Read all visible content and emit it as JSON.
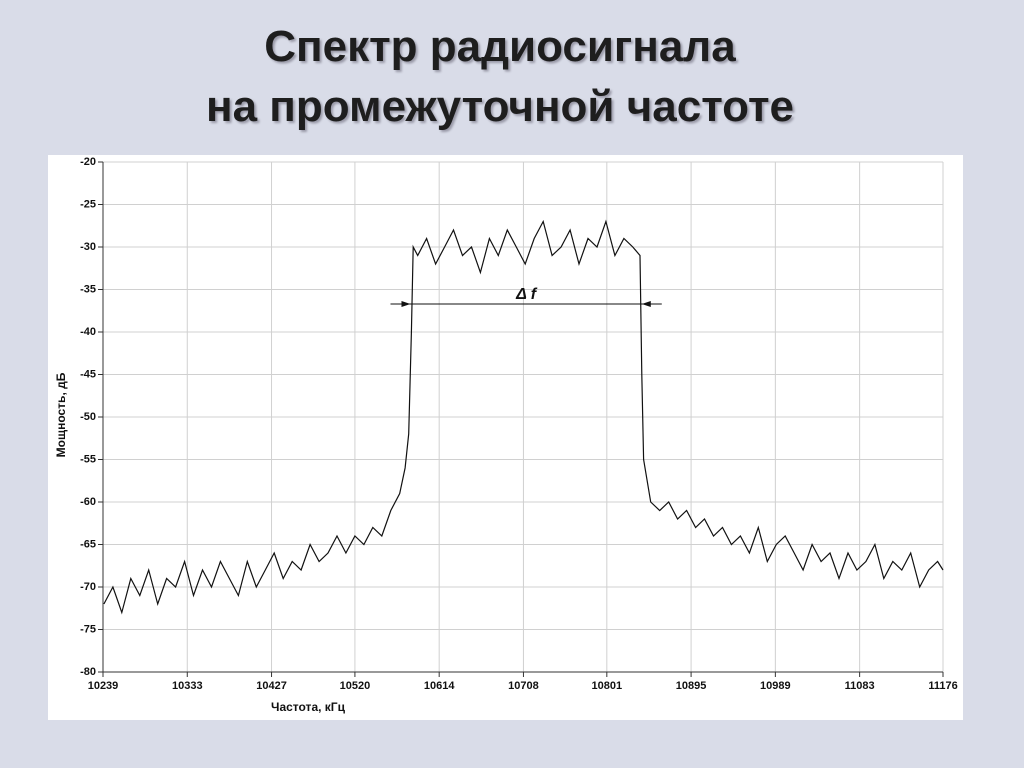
{
  "title_lines": [
    "Спектр радиосигнала",
    "на промежуточной частоте"
  ],
  "chart_data": {
    "type": "line",
    "xlabel": "Частота, кГц",
    "ylabel": "Мощность, дБ",
    "color": "#111111",
    "grid": true,
    "xlim": [
      10239,
      11176
    ],
    "ylim": [
      -80,
      -20
    ],
    "xticks": [
      10239,
      10333,
      10427,
      10520,
      10614,
      10708,
      10801,
      10895,
      10989,
      11083,
      11176
    ],
    "yticks": [
      -80,
      -75,
      -70,
      -65,
      -60,
      -55,
      -50,
      -45,
      -40,
      -35,
      -30,
      -25,
      -20
    ],
    "annotation": {
      "text": "Δ f",
      "x": [
        10582,
        10840
      ],
      "y": -36.7
    },
    "x": [
      10240,
      10250,
      10260,
      10270,
      10280,
      10290,
      10300,
      10310,
      10320,
      10330,
      10340,
      10350,
      10360,
      10370,
      10380,
      10390,
      10400,
      10410,
      10420,
      10430,
      10440,
      10450,
      10460,
      10470,
      10480,
      10490,
      10500,
      10510,
      10520,
      10530,
      10540,
      10550,
      10560,
      10570,
      10576,
      10580,
      10583,
      10585,
      10590,
      10600,
      10610,
      10620,
      10630,
      10640,
      10650,
      10660,
      10670,
      10680,
      10690,
      10700,
      10710,
      10720,
      10730,
      10740,
      10750,
      10760,
      10770,
      10780,
      10790,
      10800,
      10810,
      10820,
      10830,
      10838,
      10840,
      10842,
      10850,
      10860,
      10870,
      10880,
      10890,
      10900,
      10910,
      10920,
      10930,
      10940,
      10950,
      10960,
      10970,
      10980,
      10990,
      11000,
      11010,
      11020,
      11030,
      11040,
      11050,
      11060,
      11070,
      11080,
      11090,
      11100,
      11110,
      11120,
      11130,
      11140,
      11150,
      11160,
      11170,
      11176
    ],
    "values": [
      -72,
      -70,
      -73,
      -69,
      -71,
      -68,
      -72,
      -69,
      -70,
      -67,
      -71,
      -68,
      -70,
      -67,
      -69,
      -71,
      -67,
      -70,
      -68,
      -66,
      -69,
      -67,
      -68,
      -65,
      -67,
      -66,
      -64,
      -66,
      -64,
      -65,
      -63,
      -64,
      -61,
      -59,
      -56,
      -52,
      -40,
      -30,
      -31,
      -29,
      -32,
      -30,
      -28,
      -31,
      -30,
      -33,
      -29,
      -31,
      -28,
      -30,
      -32,
      -29,
      -27,
      -31,
      -30,
      -28,
      -32,
      -29,
      -30,
      -27,
      -31,
      -29,
      -30,
      -31,
      -45,
      -55,
      -60,
      -61,
      -60,
      -62,
      -61,
      -63,
      -62,
      -64,
      -63,
      -65,
      -64,
      -66,
      -63,
      -67,
      -65,
      -64,
      -66,
      -68,
      -65,
      -67,
      -66,
      -69,
      -66,
      -68,
      -67,
      -65,
      -69,
      -67,
      -68,
      -66,
      -70,
      -68,
      -67,
      -68
    ]
  }
}
